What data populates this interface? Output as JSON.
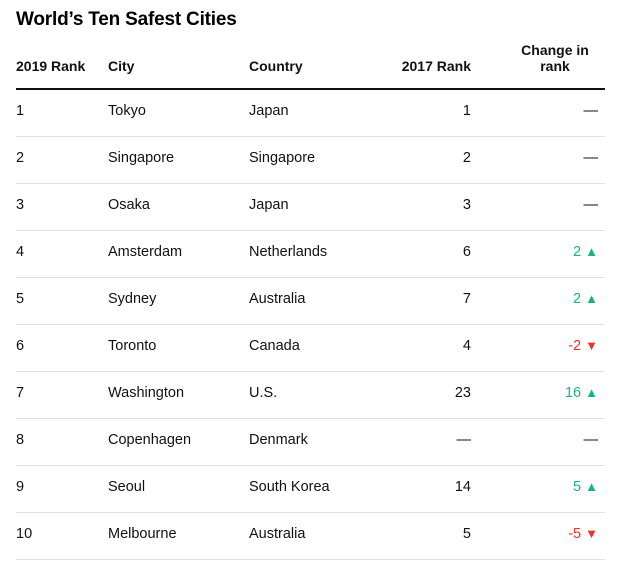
{
  "title": "World’s Ten Safest Cities",
  "headers": {
    "rank_2019": "2019 Rank",
    "city": "City",
    "country": "Country",
    "rank_2017": "2017 Rank",
    "change_line1": "Change in",
    "change_line2": "rank"
  },
  "colors": {
    "up": "#1bb37c",
    "down": "#e8322e"
  },
  "rows": [
    {
      "rank": "1",
      "city": "Tokyo",
      "country": "Japan",
      "prev": "1",
      "change": "—",
      "dir": "none"
    },
    {
      "rank": "2",
      "city": "Singapore",
      "country": "Singapore",
      "prev": "2",
      "change": "—",
      "dir": "none"
    },
    {
      "rank": "3",
      "city": "Osaka",
      "country": "Japan",
      "prev": "3",
      "change": "—",
      "dir": "none"
    },
    {
      "rank": "4",
      "city": "Amsterdam",
      "country": "Netherlands",
      "prev": "6",
      "change": "2",
      "dir": "up"
    },
    {
      "rank": "5",
      "city": "Sydney",
      "country": "Australia",
      "prev": "7",
      "change": "2",
      "dir": "up"
    },
    {
      "rank": "6",
      "city": "Toronto",
      "country": "Canada",
      "prev": "4",
      "change": "-2",
      "dir": "down"
    },
    {
      "rank": "7",
      "city": "Washington",
      "country": "U.S.",
      "prev": "23",
      "change": "16",
      "dir": "up"
    },
    {
      "rank": "8",
      "city": "Copenhagen",
      "country": "Denmark",
      "prev": "—",
      "change": "—",
      "dir": "none"
    },
    {
      "rank": "9",
      "city": "Seoul",
      "country": "South Korea",
      "prev": "14",
      "change": "5",
      "dir": "up"
    },
    {
      "rank": "10",
      "city": "Melbourne",
      "country": "Australia",
      "prev": "5",
      "change": "-5",
      "dir": "down"
    }
  ]
}
